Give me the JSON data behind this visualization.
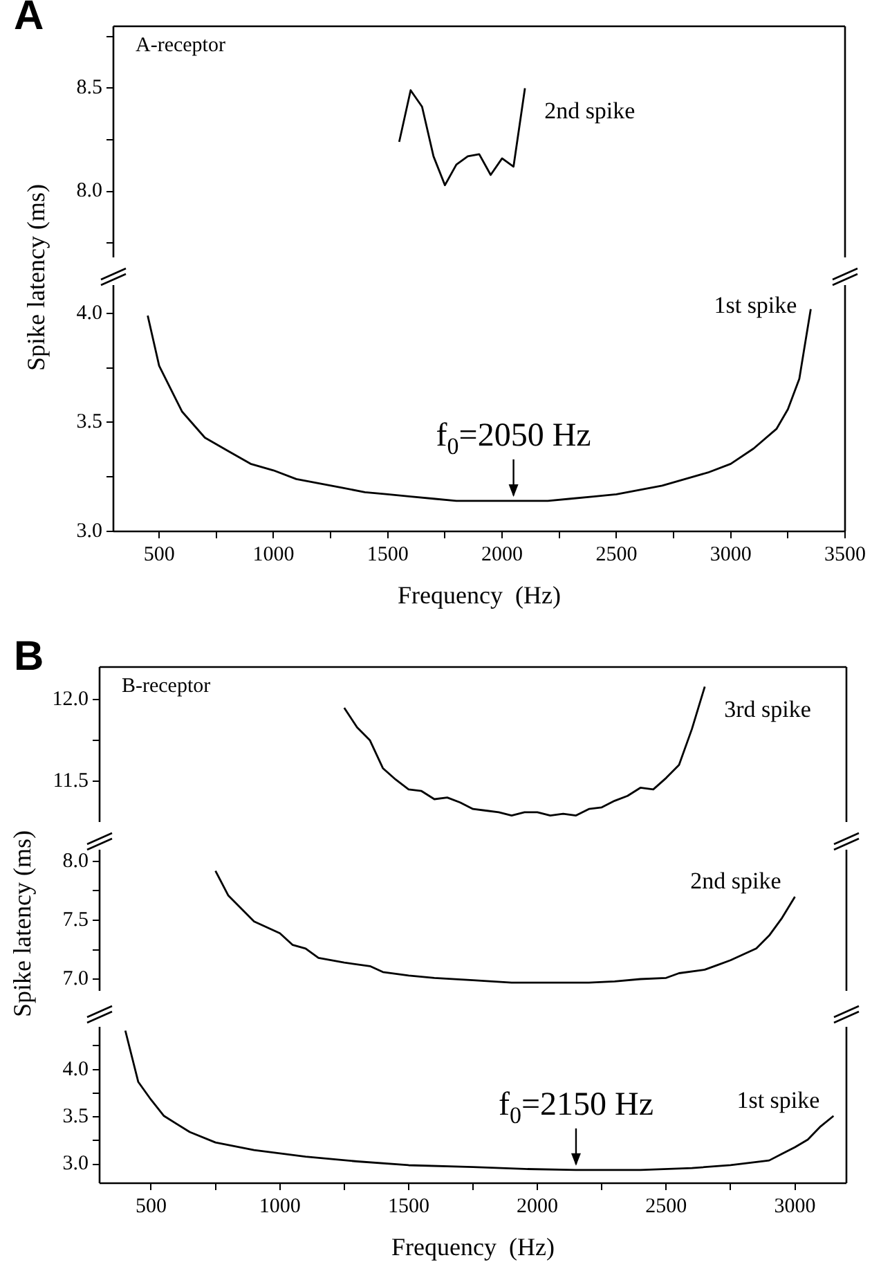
{
  "chart_data": [
    {
      "type": "line",
      "title": "A",
      "annotations": [
        "A-receptor"
      ],
      "xlim": [
        300,
        3500
      ],
      "ylim": [
        7.68,
        8.8
      ],
      "yticks": [
        {
          "value": 7.75,
          "label": null
        },
        {
          "value": 8,
          "label": "8.0"
        },
        {
          "value": 8.25,
          "label": null
        },
        {
          "value": 8.5,
          "label": "8.5"
        },
        {
          "value": 8.75,
          "label": null
        }
      ],
      "tick_labels": "y",
      "grid": false,
      "legend": false,
      "marker": "none",
      "line_style": "solid",
      "series": [
        {
          "name": "2nd spike",
          "color": "#000000",
          "x": [
            1550,
            1600,
            1650,
            1700,
            1750,
            1800,
            1850,
            1900,
            1950,
            2000,
            2050,
            2100
          ],
          "values": [
            8.24,
            8.49,
            8.41,
            8.17,
            8.03,
            8.13,
            8.17,
            8.18,
            8.08,
            8.16,
            8.12,
            8.5
          ]
        }
      ]
    },
    {
      "type": "line",
      "ylabel": "Spike latency  (ms)",
      "xlabel": "Frequency  (Hz)",
      "annotations": [
        {
          "text": "f$_{0}$=2050 Hz",
          "x": 2050,
          "y": 3.14
        }
      ],
      "xlim": [
        300,
        3500
      ],
      "xticks": [
        500,
        {
          "value": 750,
          "label": null
        },
        1000,
        {
          "value": 1250,
          "label": null
        },
        1500,
        {
          "value": 1750,
          "label": null
        },
        2000,
        {
          "value": 2250,
          "label": null
        },
        2500,
        {
          "value": 2750,
          "label": null
        },
        3000,
        {
          "value": 3250,
          "label": null
        },
        3500
      ],
      "ylim": [
        3.0,
        4.13
      ],
      "yticks": [
        {
          "value": 3,
          "label": "3.0"
        },
        {
          "value": 3.25,
          "label": null
        },
        {
          "value": 3.5,
          "label": "3.5"
        },
        {
          "value": 3.75,
          "label": null
        },
        {
          "value": 4,
          "label": "4.0"
        }
      ],
      "grid": false,
      "legend": false,
      "marker": "none",
      "line_style": "solid",
      "series": [
        {
          "name": "1st spike",
          "color": "#000000",
          "x": [
            450,
            500,
            600,
            700,
            800,
            900,
            1000,
            1100,
            1200,
            1300,
            1400,
            1500,
            1600,
            1700,
            1800,
            1900,
            2000,
            2100,
            2200,
            2300,
            2400,
            2500,
            2600,
            2700,
            2800,
            2900,
            3000,
            3100,
            3200,
            3250,
            3300,
            3350
          ],
          "values": [
            3.99,
            3.76,
            3.55,
            3.43,
            3.37,
            3.31,
            3.28,
            3.24,
            3.22,
            3.2,
            3.18,
            3.17,
            3.16,
            3.15,
            3.14,
            3.14,
            3.14,
            3.14,
            3.14,
            3.15,
            3.16,
            3.17,
            3.19,
            3.21,
            3.24,
            3.27,
            3.31,
            3.38,
            3.47,
            3.56,
            3.7,
            4.02
          ]
        }
      ]
    },
    {
      "type": "line",
      "title": "B",
      "annotations": [
        "B-receptor"
      ],
      "xlim": [
        300,
        3200
      ],
      "ylim": [
        11.25,
        12.2
      ],
      "yticks": [
        {
          "value": 11.5,
          "label": "11.5"
        },
        {
          "value": 11.75,
          "label": null
        },
        {
          "value": 12,
          "label": "12.0"
        }
      ],
      "tick_labels": "y",
      "grid": false,
      "legend": false,
      "marker": "none",
      "line_style": "solid",
      "series": [
        {
          "name": "3rd spike",
          "color": "#000000",
          "x": [
            1250,
            1300,
            1350,
            1400,
            1450,
            1500,
            1550,
            1600,
            1650,
            1700,
            1750,
            1800,
            1850,
            1900,
            1950,
            2000,
            2050,
            2100,
            2150,
            2200,
            2250,
            2300,
            2350,
            2400,
            2450,
            2500,
            2550,
            2600,
            2650
          ],
          "values": [
            11.95,
            11.83,
            11.75,
            11.58,
            11.51,
            11.45,
            11.44,
            11.39,
            11.4,
            11.37,
            11.33,
            11.32,
            11.31,
            11.29,
            11.31,
            11.31,
            11.29,
            11.3,
            11.29,
            11.33,
            11.34,
            11.38,
            11.41,
            11.46,
            11.45,
            11.52,
            11.6,
            11.82,
            12.08
          ]
        }
      ]
    },
    {
      "type": "line",
      "ylabel": "Spike latency  (ms)",
      "xlim": [
        300,
        3200
      ],
      "ylim": [
        6.9,
        8.1
      ],
      "yticks": [
        {
          "value": 7,
          "label": "7.0"
        },
        {
          "value": 7.25,
          "label": null
        },
        {
          "value": 7.5,
          "label": "7.5"
        },
        {
          "value": 7.75,
          "label": null
        },
        {
          "value": 8,
          "label": "8.0"
        }
      ],
      "tick_labels": "y",
      "grid": false,
      "legend": false,
      "marker": "none",
      "line_style": "solid",
      "series": [
        {
          "name": "2nd spike",
          "color": "#000000",
          "x": [
            750,
            800,
            900,
            1000,
            1050,
            1100,
            1150,
            1250,
            1350,
            1400,
            1500,
            1600,
            1750,
            1900,
            2050,
            2200,
            2300,
            2400,
            2500,
            2550,
            2650,
            2700,
            2750,
            2850,
            2900,
            2950,
            3000
          ],
          "values": [
            7.92,
            7.71,
            7.49,
            7.39,
            7.29,
            7.26,
            7.18,
            7.14,
            7.11,
            7.06,
            7.03,
            7.01,
            6.99,
            6.97,
            6.97,
            6.97,
            6.98,
            7.0,
            7.01,
            7.05,
            7.08,
            7.12,
            7.16,
            7.26,
            7.37,
            7.52,
            7.7
          ]
        }
      ]
    },
    {
      "type": "line",
      "xlabel": "Frequency  (Hz)",
      "annotations": [
        {
          "text": "f$_{0}$=2150 Hz",
          "x": 2150,
          "y": 2.94
        }
      ],
      "xlim": [
        300,
        3200
      ],
      "xticks": [
        500,
        {
          "value": 750,
          "label": null
        },
        1000,
        {
          "value": 1250,
          "label": null
        },
        1500,
        {
          "value": 1750,
          "label": null
        },
        2000,
        {
          "value": 2250,
          "label": null
        },
        2500,
        {
          "value": 2750,
          "label": null
        },
        3000
      ],
      "ylim": [
        2.8,
        4.45
      ],
      "yticks": [
        {
          "value": 3,
          "label": "3.0"
        },
        {
          "value": 3.25,
          "label": null
        },
        {
          "value": 3.5,
          "label": "3.5"
        },
        {
          "value": 3.75,
          "label": null
        },
        {
          "value": 4,
          "label": "4.0"
        },
        {
          "value": 4.25,
          "label": null
        }
      ],
      "grid": false,
      "legend": false,
      "marker": "none",
      "line_style": "solid",
      "series": [
        {
          "name": "1st spike",
          "color": "#000000",
          "x": [
            400,
            450,
            500,
            550,
            650,
            750,
            900,
            1100,
            1300,
            1500,
            1750,
            1950,
            2150,
            2400,
            2600,
            2750,
            2900,
            2950,
            3000,
            3050,
            3100,
            3150
          ],
          "values": [
            4.41,
            3.87,
            3.68,
            3.51,
            3.34,
            3.23,
            3.15,
            3.08,
            3.03,
            2.99,
            2.97,
            2.95,
            2.94,
            2.94,
            2.96,
            2.99,
            3.04,
            3.11,
            3.18,
            3.26,
            3.4,
            3.51
          ]
        }
      ]
    }
  ]
}
